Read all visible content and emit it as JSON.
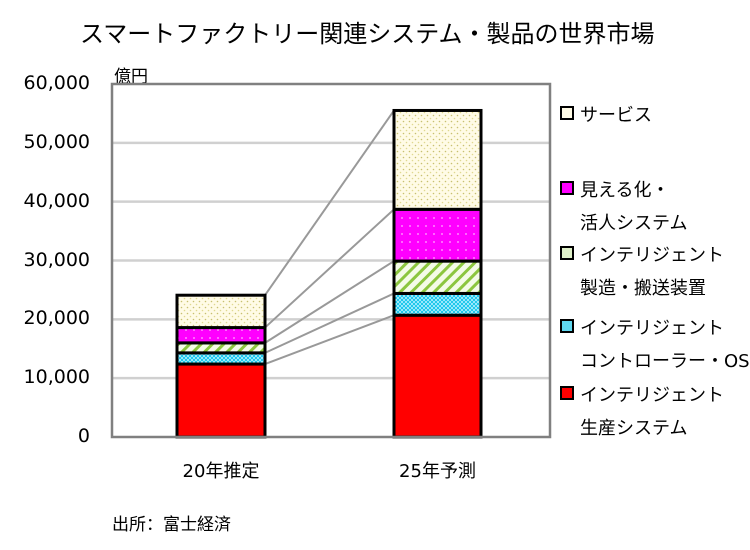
{
  "chart_data": {
    "type": "bar",
    "stacked": true,
    "title": "スマートファクトリー関連システム・製品の世界市場",
    "ylabel": "億円",
    "ylim": [
      0,
      60000
    ],
    "yticks": [
      "0",
      "10,000",
      "20,000",
      "30,000",
      "40,000",
      "50,000",
      "60,000"
    ],
    "ytick_values": [
      0,
      10000,
      20000,
      30000,
      40000,
      50000,
      60000
    ],
    "grid": true,
    "legend_position": "right",
    "categories": [
      "20年推定",
      "25年予測"
    ],
    "series": [
      {
        "name": "インテリジェント生産システム",
        "label_lines": [
          "インテリジェント",
          "生産システム"
        ],
        "values": [
          12400,
          20700
        ],
        "color": "#ff0000",
        "pattern": "solid"
      },
      {
        "name": "インテリジェントコントローラー・OS",
        "label_lines": [
          "インテリジェント",
          "コントローラー・OS"
        ],
        "values": [
          1900,
          3700
        ],
        "color": "#00c0e8",
        "pattern": "cross-hatch"
      },
      {
        "name": "インテリジェント製造・搬送装置",
        "label_lines": [
          "インテリジェント",
          "製造・搬送装置"
        ],
        "values": [
          1700,
          5500
        ],
        "color": "#8cc63f",
        "pattern": "diagonal-stripes"
      },
      {
        "name": "見える化・活人システム",
        "label_lines": [
          "見える化・",
          "活人システム"
        ],
        "values": [
          2600,
          8800
        ],
        "color": "#ff00ff",
        "pattern": "dots"
      },
      {
        "name": "サービス",
        "label_lines": [
          "サービス",
          ""
        ],
        "values": [
          5500,
          16800
        ],
        "color": "#fffbe6",
        "pattern": "dots"
      }
    ],
    "series_lines": true
  },
  "source": "出所：富士経済"
}
